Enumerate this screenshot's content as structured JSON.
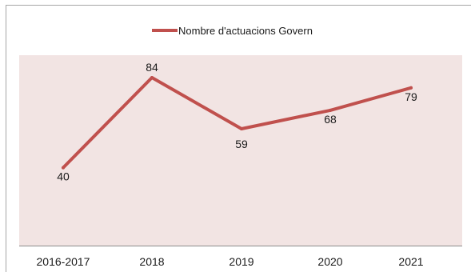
{
  "chart_data": {
    "type": "line",
    "categories": [
      "2016-2017",
      "2018",
      "2019",
      "2020",
      "2021"
    ],
    "series": [
      {
        "name": "Nombre d'actuacions Govern",
        "values": [
          40,
          84,
          59,
          68,
          79
        ]
      }
    ],
    "data_labels": [
      "40",
      "84",
      "59",
      "68",
      "79"
    ],
    "legend": {
      "position": "top"
    },
    "grid": false,
    "colors": {
      "line": "#c0504d",
      "plot_area": "#f2e4e3",
      "frame": "#a6a6a6"
    }
  }
}
